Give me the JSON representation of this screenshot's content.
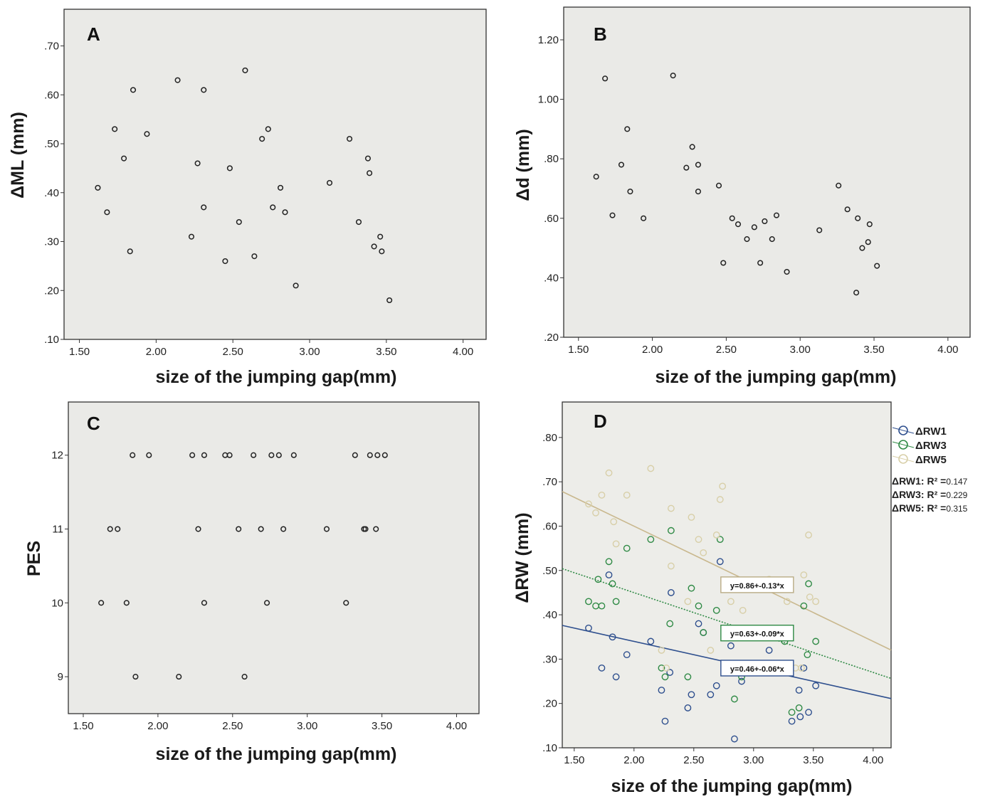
{
  "chart_data": [
    {
      "type": "scatter",
      "panel_label": "A",
      "xlabel": "size of the jumping gap(mm)",
      "ylabel": "ΔML (mm)",
      "xlim": [
        1.4,
        4.15
      ],
      "ylim": [
        0.1,
        0.775
      ],
      "xticks": [
        1.5,
        2.0,
        2.5,
        3.0,
        3.5,
        4.0
      ],
      "xtick_labels": [
        "1.50",
        "2.00",
        "2.50",
        "3.00",
        "3.50",
        "4.00"
      ],
      "yticks": [
        0.1,
        0.2,
        0.3,
        0.4,
        0.5,
        0.6,
        0.7
      ],
      "ytick_labels": [
        ".10",
        ".20",
        ".30",
        ".40",
        ".50",
        ".60",
        ".70"
      ],
      "grid": false,
      "series": [
        {
          "color": "#222222",
          "points": [
            [
              1.62,
              0.41
            ],
            [
              1.68,
              0.36
            ],
            [
              1.73,
              0.53
            ],
            [
              1.79,
              0.47
            ],
            [
              1.83,
              0.28
            ],
            [
              1.85,
              0.61
            ],
            [
              1.94,
              0.52
            ],
            [
              2.14,
              0.63
            ],
            [
              2.23,
              0.31
            ],
            [
              2.27,
              0.46
            ],
            [
              2.31,
              0.61
            ],
            [
              2.31,
              0.37
            ],
            [
              2.45,
              0.26
            ],
            [
              2.48,
              0.45
            ],
            [
              2.54,
              0.34
            ],
            [
              2.58,
              0.65
            ],
            [
              2.64,
              0.27
            ],
            [
              2.69,
              0.51
            ],
            [
              2.73,
              0.53
            ],
            [
              2.76,
              0.37
            ],
            [
              2.81,
              0.41
            ],
            [
              2.84,
              0.36
            ],
            [
              2.91,
              0.21
            ],
            [
              3.13,
              0.42
            ],
            [
              3.26,
              0.51
            ],
            [
              3.32,
              0.34
            ],
            [
              3.38,
              0.47
            ],
            [
              3.39,
              0.44
            ],
            [
              3.42,
              0.29
            ],
            [
              3.46,
              0.31
            ],
            [
              3.47,
              0.28
            ],
            [
              3.52,
              0.18
            ]
          ]
        }
      ]
    },
    {
      "type": "scatter",
      "panel_label": "B",
      "xlabel": "size of the jumping gap(mm)",
      "ylabel": "Δd (mm)",
      "xlim": [
        1.4,
        4.15
      ],
      "ylim": [
        0.2,
        1.31
      ],
      "xticks": [
        1.5,
        2.0,
        2.5,
        3.0,
        3.5,
        4.0
      ],
      "xtick_labels": [
        "1.50",
        "2.00",
        "2.50",
        "3.00",
        "3.50",
        "4.00"
      ],
      "yticks": [
        0.2,
        0.4,
        0.6,
        0.8,
        1.0,
        1.2
      ],
      "ytick_labels": [
        ".20",
        ".40",
        ".60",
        ".80",
        "1.00",
        "1.20"
      ],
      "grid": false,
      "series": [
        {
          "color": "#222222",
          "points": [
            [
              1.62,
              0.74
            ],
            [
              1.68,
              1.07
            ],
            [
              1.73,
              0.61
            ],
            [
              1.79,
              0.78
            ],
            [
              1.83,
              0.9
            ],
            [
              1.85,
              0.69
            ],
            [
              1.94,
              0.6
            ],
            [
              2.14,
              1.08
            ],
            [
              2.23,
              0.77
            ],
            [
              2.27,
              0.84
            ],
            [
              2.31,
              0.78
            ],
            [
              2.31,
              0.69
            ],
            [
              2.45,
              0.71
            ],
            [
              2.48,
              0.45
            ],
            [
              2.54,
              0.6
            ],
            [
              2.58,
              0.58
            ],
            [
              2.64,
              0.53
            ],
            [
              2.69,
              0.57
            ],
            [
              2.73,
              0.45
            ],
            [
              2.76,
              0.59
            ],
            [
              2.81,
              0.53
            ],
            [
              2.84,
              0.61
            ],
            [
              2.91,
              0.42
            ],
            [
              3.13,
              0.56
            ],
            [
              3.26,
              0.71
            ],
            [
              3.32,
              0.63
            ],
            [
              3.38,
              0.35
            ],
            [
              3.39,
              0.6
            ],
            [
              3.42,
              0.5
            ],
            [
              3.46,
              0.52
            ],
            [
              3.47,
              0.58
            ],
            [
              3.52,
              0.44
            ]
          ]
        }
      ]
    },
    {
      "type": "scatter",
      "panel_label": "C",
      "xlabel": "size of the jumping gap(mm)",
      "ylabel": "PES",
      "xlim": [
        1.4,
        4.15
      ],
      "ylim": [
        8.5,
        12.72
      ],
      "xticks": [
        1.5,
        2.0,
        2.5,
        3.0,
        3.5,
        4.0
      ],
      "xtick_labels": [
        "1.50",
        "2.00",
        "2.50",
        "3.00",
        "3.50",
        "4.00"
      ],
      "yticks": [
        9,
        10,
        11,
        12
      ],
      "ytick_labels": [
        "9",
        "10",
        "11",
        "12"
      ],
      "grid": false,
      "series": [
        {
          "color": "#222222",
          "points": [
            [
              1.62,
              10
            ],
            [
              1.68,
              11
            ],
            [
              1.73,
              11
            ],
            [
              1.79,
              10
            ],
            [
              1.83,
              12
            ],
            [
              1.85,
              9
            ],
            [
              1.94,
              12
            ],
            [
              2.14,
              9
            ],
            [
              2.23,
              12
            ],
            [
              2.27,
              11
            ],
            [
              2.31,
              12
            ],
            [
              2.31,
              10
            ],
            [
              2.45,
              12
            ],
            [
              2.48,
              12
            ],
            [
              2.54,
              11
            ],
            [
              2.58,
              9
            ],
            [
              2.64,
              12
            ],
            [
              2.69,
              11
            ],
            [
              2.73,
              10
            ],
            [
              2.76,
              12
            ],
            [
              2.81,
              12
            ],
            [
              2.84,
              11
            ],
            [
              2.91,
              12
            ],
            [
              3.13,
              11
            ],
            [
              3.26,
              10
            ],
            [
              3.32,
              12
            ],
            [
              3.38,
              11
            ],
            [
              3.39,
              11
            ],
            [
              3.42,
              12
            ],
            [
              3.46,
              11
            ],
            [
              3.47,
              12
            ],
            [
              3.52,
              12
            ]
          ]
        }
      ]
    },
    {
      "type": "scatter",
      "panel_label": "D",
      "xlabel": "size of the jumping gap(mm)",
      "ylabel": "ΔRW (mm)",
      "xlim": [
        1.4,
        4.15
      ],
      "ylim": [
        0.1,
        0.88
      ],
      "xticks": [
        1.5,
        2.0,
        2.5,
        3.0,
        3.5,
        4.0
      ],
      "xtick_labels": [
        "1.50",
        "2.00",
        "2.50",
        "3.00",
        "3.50",
        "4.00"
      ],
      "yticks": [
        0.1,
        0.2,
        0.3,
        0.4,
        0.5,
        0.6,
        0.7,
        0.8
      ],
      "ytick_labels": [
        ".10",
        ".20",
        ".30",
        ".40",
        ".50",
        ".60",
        ".70",
        ".80"
      ],
      "grid": false,
      "legend_position": "right",
      "series": [
        {
          "name": "ΔRW1",
          "color": "#2e4f8e",
          "fit": {
            "intercept": 0.46,
            "slope": -0.06,
            "label": "y=0.46+-0.06*x"
          },
          "r2_label": "ΔRW1: R² =",
          "r2": "0.147",
          "points": [
            [
              1.62,
              0.37
            ],
            [
              1.73,
              0.28
            ],
            [
              1.79,
              0.49
            ],
            [
              1.82,
              0.35
            ],
            [
              1.85,
              0.26
            ],
            [
              1.94,
              0.31
            ],
            [
              2.14,
              0.34
            ],
            [
              2.23,
              0.23
            ],
            [
              2.26,
              0.16
            ],
            [
              2.3,
              0.27
            ],
            [
              2.31,
              0.45
            ],
            [
              2.45,
              0.19
            ],
            [
              2.48,
              0.22
            ],
            [
              2.54,
              0.38
            ],
            [
              2.58,
              0.36
            ],
            [
              2.64,
              0.22
            ],
            [
              2.69,
              0.24
            ],
            [
              2.72,
              0.52
            ],
            [
              2.76,
              0.46
            ],
            [
              2.81,
              0.33
            ],
            [
              2.84,
              0.12
            ],
            [
              2.9,
              0.25
            ],
            [
              3.13,
              0.32
            ],
            [
              3.26,
              0.29
            ],
            [
              3.32,
              0.16
            ],
            [
              3.38,
              0.23
            ],
            [
              3.39,
              0.17
            ],
            [
              3.42,
              0.28
            ],
            [
              3.46,
              0.18
            ],
            [
              3.52,
              0.24
            ]
          ]
        },
        {
          "name": "ΔRW3",
          "color": "#2f8a45",
          "fit": {
            "intercept": 0.63,
            "slope": -0.09,
            "label": "y=0.63+-0.09*x"
          },
          "r2_label": "ΔRW3: R² =",
          "r2": "0.229",
          "points": [
            [
              1.62,
              0.43
            ],
            [
              1.68,
              0.42
            ],
            [
              1.7,
              0.48
            ],
            [
              1.73,
              0.42
            ],
            [
              1.79,
              0.52
            ],
            [
              1.82,
              0.47
            ],
            [
              1.85,
              0.43
            ],
            [
              1.94,
              0.55
            ],
            [
              2.14,
              0.57
            ],
            [
              2.23,
              0.28
            ],
            [
              2.26,
              0.26
            ],
            [
              2.3,
              0.38
            ],
            [
              2.31,
              0.59
            ],
            [
              2.45,
              0.26
            ],
            [
              2.48,
              0.46
            ],
            [
              2.54,
              0.42
            ],
            [
              2.58,
              0.36
            ],
            [
              2.69,
              0.41
            ],
            [
              2.72,
              0.57
            ],
            [
              2.81,
              0.35
            ],
            [
              2.84,
              0.21
            ],
            [
              2.9,
              0.26
            ],
            [
              3.13,
              0.36
            ],
            [
              3.26,
              0.34
            ],
            [
              3.32,
              0.18
            ],
            [
              3.38,
              0.19
            ],
            [
              3.42,
              0.42
            ],
            [
              3.45,
              0.31
            ],
            [
              3.46,
              0.47
            ],
            [
              3.52,
              0.34
            ]
          ]
        },
        {
          "name": "ΔRW5",
          "color": "#d8cfa8",
          "fit": {
            "intercept": 0.86,
            "slope": -0.13,
            "label": "y=0.86+-0.13*x"
          },
          "r2_label": "ΔRW5: R² =",
          "r2": "0.315",
          "points": [
            [
              1.62,
              0.65
            ],
            [
              1.68,
              0.63
            ],
            [
              1.73,
              0.67
            ],
            [
              1.79,
              0.72
            ],
            [
              1.83,
              0.61
            ],
            [
              1.85,
              0.56
            ],
            [
              1.94,
              0.67
            ],
            [
              2.14,
              0.73
            ],
            [
              2.23,
              0.32
            ],
            [
              2.27,
              0.28
            ],
            [
              2.31,
              0.64
            ],
            [
              2.31,
              0.51
            ],
            [
              2.45,
              0.43
            ],
            [
              2.48,
              0.62
            ],
            [
              2.54,
              0.57
            ],
            [
              2.58,
              0.54
            ],
            [
              2.64,
              0.32
            ],
            [
              2.69,
              0.58
            ],
            [
              2.72,
              0.66
            ],
            [
              2.74,
              0.69
            ],
            [
              2.81,
              0.43
            ],
            [
              2.91,
              0.41
            ],
            [
              3.13,
              0.48
            ],
            [
              3.28,
              0.43
            ],
            [
              3.35,
              0.28
            ],
            [
              3.4,
              0.28
            ],
            [
              3.42,
              0.49
            ],
            [
              3.46,
              0.58
            ],
            [
              3.47,
              0.44
            ],
            [
              3.52,
              0.43
            ]
          ]
        }
      ]
    }
  ]
}
